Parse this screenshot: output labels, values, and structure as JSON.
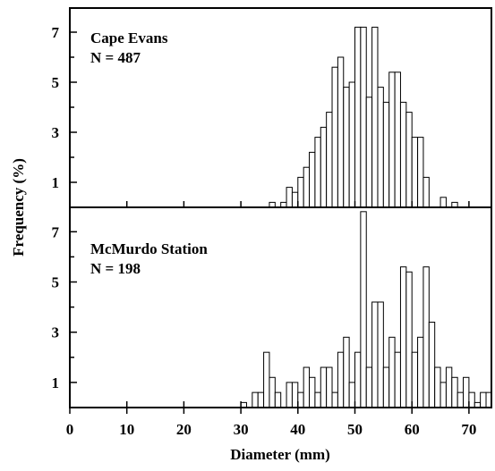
{
  "chart_data": {
    "type": "bar",
    "xlabel": "Diameter (mm)",
    "ylabel": "Frequency (%)",
    "xlim": [
      0,
      74
    ],
    "xticks": [
      0,
      10,
      20,
      30,
      40,
      50,
      60,
      70
    ],
    "ylim": [
      0,
      8
    ],
    "yticks": [
      1,
      3,
      5,
      7
    ],
    "bin_width": 1,
    "grid": false,
    "panels": [
      {
        "label": "Cape Evans",
        "n_label": "N = 487",
        "bins": [
          {
            "x": 35,
            "y": 0.2
          },
          {
            "x": 36,
            "y": 0.0
          },
          {
            "x": 37,
            "y": 0.2
          },
          {
            "x": 38,
            "y": 0.8
          },
          {
            "x": 39,
            "y": 0.6
          },
          {
            "x": 40,
            "y": 1.2
          },
          {
            "x": 41,
            "y": 1.6
          },
          {
            "x": 42,
            "y": 2.2
          },
          {
            "x": 43,
            "y": 2.8
          },
          {
            "x": 44,
            "y": 3.2
          },
          {
            "x": 45,
            "y": 3.8
          },
          {
            "x": 46,
            "y": 5.6
          },
          {
            "x": 47,
            "y": 6.0
          },
          {
            "x": 48,
            "y": 4.8
          },
          {
            "x": 49,
            "y": 5.0
          },
          {
            "x": 50,
            "y": 7.2
          },
          {
            "x": 51,
            "y": 7.2
          },
          {
            "x": 52,
            "y": 4.4
          },
          {
            "x": 53,
            "y": 7.2
          },
          {
            "x": 54,
            "y": 4.8
          },
          {
            "x": 55,
            "y": 4.2
          },
          {
            "x": 56,
            "y": 5.4
          },
          {
            "x": 57,
            "y": 5.4
          },
          {
            "x": 58,
            "y": 4.2
          },
          {
            "x": 59,
            "y": 3.8
          },
          {
            "x": 60,
            "y": 2.8
          },
          {
            "x": 61,
            "y": 2.8
          },
          {
            "x": 62,
            "y": 1.2
          },
          {
            "x": 63,
            "y": 0.0
          },
          {
            "x": 64,
            "y": 0.0
          },
          {
            "x": 65,
            "y": 0.4
          },
          {
            "x": 66,
            "y": 0.0
          },
          {
            "x": 67,
            "y": 0.2
          }
        ]
      },
      {
        "label": "McMurdo Station",
        "n_label": "N = 198",
        "bins": [
          {
            "x": 30,
            "y": 0.2
          },
          {
            "x": 31,
            "y": 0.0
          },
          {
            "x": 32,
            "y": 0.6
          },
          {
            "x": 33,
            "y": 0.6
          },
          {
            "x": 34,
            "y": 2.2
          },
          {
            "x": 35,
            "y": 1.2
          },
          {
            "x": 36,
            "y": 0.6
          },
          {
            "x": 37,
            "y": 0.0
          },
          {
            "x": 38,
            "y": 1.0
          },
          {
            "x": 39,
            "y": 1.0
          },
          {
            "x": 40,
            "y": 0.6
          },
          {
            "x": 41,
            "y": 1.6
          },
          {
            "x": 42,
            "y": 1.2
          },
          {
            "x": 43,
            "y": 0.6
          },
          {
            "x": 44,
            "y": 1.6
          },
          {
            "x": 45,
            "y": 1.6
          },
          {
            "x": 46,
            "y": 0.6
          },
          {
            "x": 47,
            "y": 2.2
          },
          {
            "x": 48,
            "y": 2.8
          },
          {
            "x": 49,
            "y": 1.0
          },
          {
            "x": 50,
            "y": 2.2
          },
          {
            "x": 51,
            "y": 7.8
          },
          {
            "x": 52,
            "y": 1.6
          },
          {
            "x": 53,
            "y": 4.2
          },
          {
            "x": 54,
            "y": 4.2
          },
          {
            "x": 55,
            "y": 1.6
          },
          {
            "x": 56,
            "y": 2.8
          },
          {
            "x": 57,
            "y": 2.2
          },
          {
            "x": 58,
            "y": 5.6
          },
          {
            "x": 59,
            "y": 5.4
          },
          {
            "x": 60,
            "y": 2.2
          },
          {
            "x": 61,
            "y": 2.8
          },
          {
            "x": 62,
            "y": 5.6
          },
          {
            "x": 63,
            "y": 3.4
          },
          {
            "x": 64,
            "y": 1.6
          },
          {
            "x": 65,
            "y": 1.0
          },
          {
            "x": 66,
            "y": 1.6
          },
          {
            "x": 67,
            "y": 1.2
          },
          {
            "x": 68,
            "y": 0.6
          },
          {
            "x": 69,
            "y": 1.2
          },
          {
            "x": 70,
            "y": 0.6
          },
          {
            "x": 71,
            "y": 0.2
          },
          {
            "x": 72,
            "y": 0.6
          },
          {
            "x": 73,
            "y": 0.6
          }
        ]
      }
    ]
  }
}
